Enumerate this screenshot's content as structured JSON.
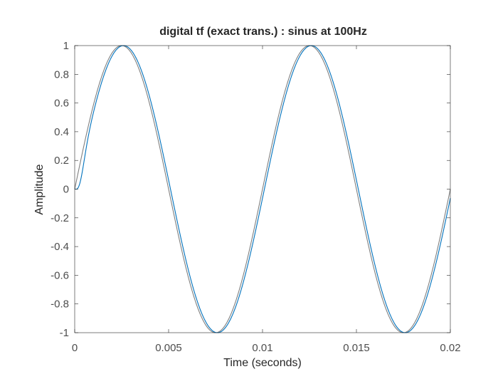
{
  "chart_data": {
    "type": "line",
    "title": "digital tf (exact trans.) : sinus at 100Hz",
    "xlabel": "Time (seconds)",
    "ylabel": "Amplitude",
    "xlim": [
      0,
      0.02
    ],
    "ylim": [
      -1,
      1
    ],
    "x_ticks": [
      0,
      0.005,
      0.01,
      0.015,
      0.02
    ],
    "x_tick_labels": [
      "0",
      "0.005",
      "0.01",
      "0.015",
      "0.02"
    ],
    "y_ticks": [
      -1,
      -0.8,
      -0.6,
      -0.4,
      -0.2,
      0,
      0.2,
      0.4,
      0.6,
      0.8,
      1
    ],
    "y_tick_labels": [
      "-1",
      "-0.8",
      "-0.6",
      "-0.4",
      "-0.2",
      "0",
      "0.2",
      "0.4",
      "0.6",
      "0.8",
      "1"
    ],
    "grid": false,
    "legend": "none",
    "frequency_hz": 100,
    "series": [
      {
        "color": "#808080",
        "amplitude": 1,
        "delay_s": 0,
        "transient": false
      },
      {
        "color": "#0072BD",
        "amplitude": 1,
        "delay_s": 0.0001,
        "transient": true
      }
    ]
  }
}
